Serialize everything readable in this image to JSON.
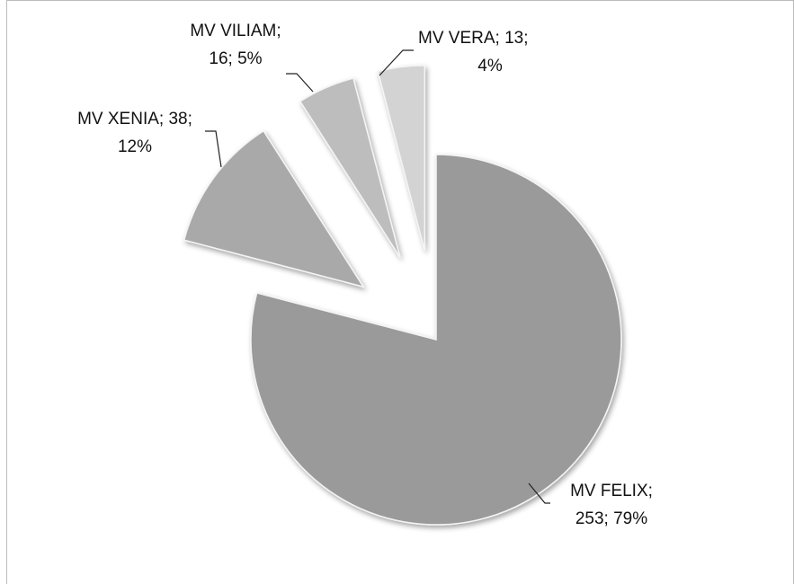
{
  "chart_data": {
    "type": "pie",
    "categories": [
      "MV FELIX",
      "MV XENIA",
      "MV VILIAM",
      "MV VERA"
    ],
    "values": [
      253,
      38,
      16,
      13
    ],
    "value_labels": [
      [
        ";",
        "253; 79%"
      ],
      [
        "; 38;",
        "12%"
      ],
      [
        ";",
        "16; 5%"
      ],
      [
        "; 13;",
        "4%"
      ]
    ],
    "colors": [
      "#9a9a9a",
      "#a9a9a9",
      "#bdbdbd",
      "#d3d3d3"
    ],
    "explode": [
      false,
      true,
      true,
      true
    ]
  }
}
